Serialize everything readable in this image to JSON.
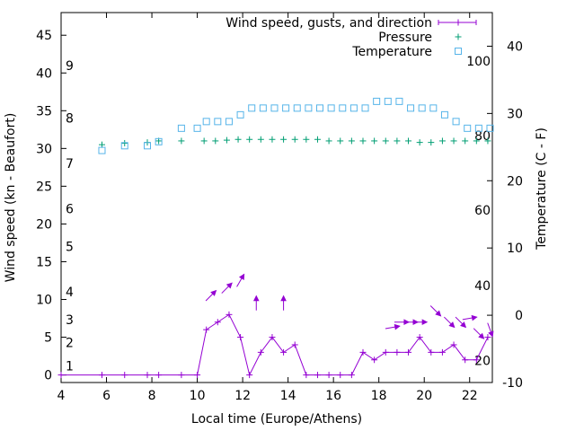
{
  "chart_data": {
    "type": "line",
    "xlabel": "Local time (Europe/Athens)",
    "ylabel_left": "Wind speed (kn - Beaufort)",
    "ylabel_right": "Temperature (C - F)",
    "x_range": [
      4,
      23
    ],
    "y_left_range": [
      -1,
      48
    ],
    "y_right_range": [
      -10,
      45
    ],
    "x_ticks": [
      4,
      6,
      8,
      10,
      12,
      14,
      16,
      18,
      20,
      22
    ],
    "y_left_ticks": [
      0,
      5,
      10,
      15,
      20,
      25,
      30,
      35,
      40,
      45
    ],
    "y_right_ticks": [
      -10,
      0,
      10,
      20,
      30,
      40
    ],
    "beaufort_labels": [
      {
        "label": "1",
        "kn": 1.2
      },
      {
        "label": "2",
        "kn": 4.3
      },
      {
        "label": "3",
        "kn": 7.3
      },
      {
        "label": "4",
        "kn": 11.0
      },
      {
        "label": "5",
        "kn": 17.0
      },
      {
        "label": "6",
        "kn": 22.0
      },
      {
        "label": "7",
        "kn": 28.0
      },
      {
        "label": "8",
        "kn": 34.0
      },
      {
        "label": "9",
        "kn": 41.0
      }
    ],
    "fahrenheit_labels": [
      {
        "label": "20",
        "c": -6.7
      },
      {
        "label": "40",
        "c": 4.4
      },
      {
        "label": "60",
        "c": 15.6
      },
      {
        "label": "80",
        "c": 26.7
      },
      {
        "label": "100",
        "c": 37.8
      }
    ],
    "legend_position": "top-right",
    "colors": {
      "wind": "#9400d3",
      "pressure": "#009e73",
      "temperature": "#56b4e9",
      "axis": "#000000"
    },
    "series": [
      {
        "name": "Wind speed, gusts, and direction",
        "marker": "plus-line",
        "x": [
          4.0,
          5.8,
          6.8,
          7.8,
          8.3,
          9.3,
          10.0,
          10.4,
          10.9,
          11.4,
          11.9,
          12.3,
          12.8,
          13.3,
          13.8,
          14.3,
          14.8,
          15.3,
          15.8,
          16.3,
          16.8,
          17.3,
          17.8,
          18.3,
          18.8,
          19.3,
          19.8,
          20.3,
          20.8,
          21.3,
          21.8,
          22.3,
          22.8
        ],
        "y": [
          0,
          0,
          0,
          0,
          0,
          0,
          0,
          6,
          7,
          8,
          5,
          0,
          3,
          5,
          3,
          4,
          0,
          0,
          0,
          0,
          0,
          3,
          2,
          3,
          3,
          3,
          5,
          3,
          3,
          4,
          2,
          2,
          5
        ]
      },
      {
        "name": "Pressure",
        "marker": "plus",
        "x": [
          5.8,
          6.8,
          7.8,
          8.3,
          9.3,
          10.3,
          10.8,
          11.3,
          11.8,
          12.3,
          12.8,
          13.3,
          13.8,
          14.3,
          14.8,
          15.3,
          15.8,
          16.3,
          16.8,
          17.3,
          17.8,
          18.3,
          18.8,
          19.3,
          19.8,
          20.3,
          20.8,
          21.3,
          21.8,
          22.3,
          22.8
        ],
        "y": [
          30.5,
          30.7,
          30.8,
          31.0,
          31.0,
          31.0,
          31.0,
          31.1,
          31.2,
          31.2,
          31.2,
          31.2,
          31.2,
          31.2,
          31.2,
          31.2,
          31.0,
          31.0,
          31.0,
          31.0,
          31.0,
          31.0,
          31.0,
          31.0,
          30.8,
          30.8,
          31.0,
          31.0,
          31.0,
          31.0,
          31.0
        ]
      },
      {
        "name": "Temperature",
        "marker": "square",
        "x": [
          5.8,
          6.8,
          7.8,
          8.3,
          9.3,
          10.0,
          10.4,
          10.9,
          11.4,
          11.9,
          12.4,
          12.9,
          13.4,
          13.9,
          14.4,
          14.9,
          15.4,
          15.9,
          16.4,
          16.9,
          17.4,
          17.9,
          18.4,
          18.9,
          19.4,
          19.9,
          20.4,
          20.9,
          21.4,
          21.9,
          22.4,
          22.9
        ],
        "y": [
          24.5,
          25.2,
          25.2,
          25.8,
          27.8,
          27.8,
          28.8,
          28.8,
          28.8,
          29.8,
          30.8,
          30.8,
          30.8,
          30.8,
          30.8,
          30.8,
          30.8,
          30.8,
          30.8,
          30.8,
          30.8,
          31.8,
          31.8,
          31.8,
          30.8,
          30.8,
          30.8,
          29.8,
          28.8,
          27.8,
          27.8,
          27.8
        ]
      }
    ],
    "gust_arrows": [
      {
        "x": 10.6,
        "y": 10.5,
        "dir": 45
      },
      {
        "x": 11.3,
        "y": 11.5,
        "dir": 45
      },
      {
        "x": 11.9,
        "y": 12.5,
        "dir": 30
      },
      {
        "x": 12.6,
        "y": 9.5,
        "dir": 0
      },
      {
        "x": 13.8,
        "y": 9.5,
        "dir": 0
      },
      {
        "x": 18.6,
        "y": 6.3,
        "dir": 80
      },
      {
        "x": 19.0,
        "y": 7.0,
        "dir": 90
      },
      {
        "x": 19.4,
        "y": 7.0,
        "dir": 90
      },
      {
        "x": 19.8,
        "y": 7.0,
        "dir": 90
      },
      {
        "x": 20.5,
        "y": 8.5,
        "dir": 135
      },
      {
        "x": 21.1,
        "y": 7.0,
        "dir": 135
      },
      {
        "x": 21.6,
        "y": 7.0,
        "dir": 135
      },
      {
        "x": 22.0,
        "y": 7.5,
        "dir": 80
      },
      {
        "x": 22.4,
        "y": 5.5,
        "dir": 135
      },
      {
        "x": 22.9,
        "y": 6.0,
        "dir": 160
      }
    ]
  }
}
